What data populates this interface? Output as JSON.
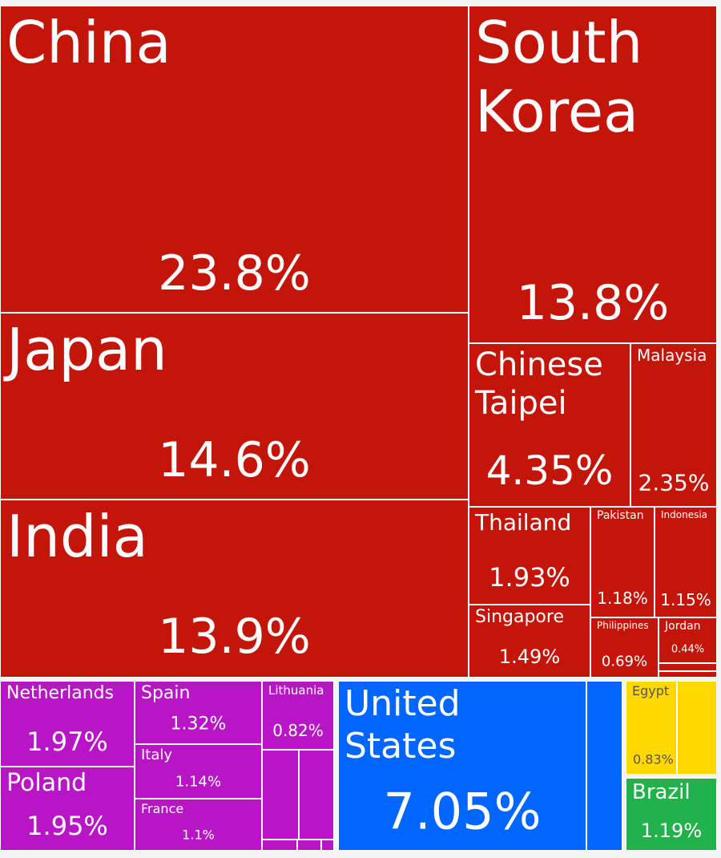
{
  "chart_data": {
    "type": "treemap",
    "categories": [
      "China",
      "Japan",
      "India",
      "South Korea",
      "Chinese Taipei",
      "Malaysia",
      "Thailand",
      "Pakistan",
      "Indonesia",
      "Singapore",
      "Philippines",
      "Jordan",
      null,
      null,
      "Netherlands",
      "Poland",
      "Spain",
      "Italy",
      "France",
      "Lithuania",
      null,
      null,
      null,
      null,
      null,
      "United States",
      null,
      "Egypt",
      null,
      "Brazil"
    ],
    "values": [
      23.8,
      14.6,
      13.9,
      13.8,
      4.35,
      2.35,
      1.93,
      1.18,
      1.15,
      1.49,
      0.69,
      0.44,
      0.08,
      0.06,
      1.97,
      1.95,
      1.32,
      1.14,
      1.1,
      0.82,
      0.55,
      0.52,
      0.07,
      0.05,
      0.02,
      7.05,
      1.0,
      0.83,
      0.62,
      1.19
    ],
    "value_labels": [
      "23.8%",
      "14.6%",
      "13.9%",
      "13.8%",
      "4.35%",
      "2.35%",
      "1.93%",
      "1.18%",
      "1.15%",
      "1.49%",
      "0.69%",
      "0.44%",
      null,
      null,
      "1.97%",
      "1.95%",
      "1.32%",
      "1.14%",
      "1.1%",
      "0.82%",
      null,
      null,
      null,
      null,
      null,
      "7.05%",
      null,
      "0.83%",
      null,
      "1.19%"
    ],
    "colors": [
      "#c4150a",
      "#c4150a",
      "#c4150a",
      "#c4150a",
      "#c4150a",
      "#c4150a",
      "#c4150a",
      "#c4150a",
      "#c4150a",
      "#c4150a",
      "#c4150a",
      "#c4150a",
      "#c4150a",
      "#c4150a",
      "#b815c6",
      "#b815c6",
      "#b815c6",
      "#b815c6",
      "#b815c6",
      "#b815c6",
      "#b815c6",
      "#b815c6",
      "#b815c6",
      "#b815c6",
      "#b815c6",
      "#0066ff",
      "#0066ff",
      "#ffd800",
      "#ffd800",
      "#22b24c"
    ]
  }
}
